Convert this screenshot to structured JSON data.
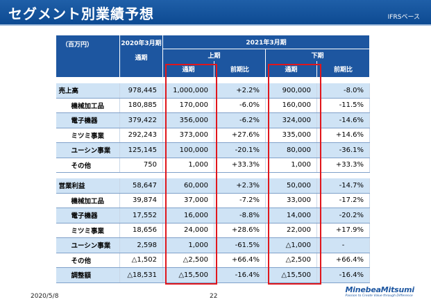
{
  "header": {
    "title": "セグメント別業績予想",
    "subtitle": "IFRSベース"
  },
  "table": {
    "unit": "（百万円）",
    "fy2020_label": "2020年3月期",
    "fy2020_sub": "通期",
    "fy2021_label": "2021年3月期",
    "first_half": "上期",
    "second_half": "下期",
    "fh_full": "通期",
    "fh_yoy": "前期比",
    "sh_full": "通期",
    "sh_yoy": "前期比",
    "rows": [
      {
        "name": "売上高",
        "v2020": "978,445",
        "h1": "1,000,000",
        "h1_yoy": "+2.2%",
        "h2": "900,000",
        "h2_yoy": "-8.0%"
      },
      {
        "name": "機械加工品",
        "v2020": "180,885",
        "h1": "170,000",
        "h1_yoy": "-6.0%",
        "h2": "160,000",
        "h2_yoy": "-11.5%"
      },
      {
        "name": "電子機器",
        "v2020": "379,422",
        "h1": "356,000",
        "h1_yoy": "-6.2%",
        "h2": "324,000",
        "h2_yoy": "-14.6%"
      },
      {
        "name": "ミツミ事業",
        "v2020": "292,243",
        "h1": "373,000",
        "h1_yoy": "+27.6%",
        "h2": "335,000",
        "h2_yoy": "+14.6%"
      },
      {
        "name": "ユーシン事業",
        "v2020": "125,145",
        "h1": "100,000",
        "h1_yoy": "-20.1%",
        "h2": "80,000",
        "h2_yoy": "-36.1%"
      },
      {
        "name": "その他",
        "v2020": "750",
        "h1": "1,000",
        "h1_yoy": "+33.3%",
        "h2": "1,000",
        "h2_yoy": "+33.3%"
      },
      {
        "name": "営業利益",
        "v2020": "58,647",
        "h1": "60,000",
        "h1_yoy": "+2.3%",
        "h2": "50,000",
        "h2_yoy": "-14.7%"
      },
      {
        "name": "機械加工品",
        "v2020": "39,874",
        "h1": "37,000",
        "h1_yoy": "-7.2%",
        "h2": "33,000",
        "h2_yoy": "-17.2%"
      },
      {
        "name": "電子機器",
        "v2020": "17,552",
        "h1": "16,000",
        "h1_yoy": "-8.8%",
        "h2": "14,000",
        "h2_yoy": "-20.2%"
      },
      {
        "name": "ミツミ事業",
        "v2020": "18,656",
        "h1": "24,000",
        "h1_yoy": "+28.6%",
        "h2": "22,000",
        "h2_yoy": "+17.9%"
      },
      {
        "name": "ユーシン事業",
        "v2020": "2,598",
        "h1": "1,000",
        "h1_yoy": "-61.5%",
        "h2": "△1,000",
        "h2_yoy": "-"
      },
      {
        "name": "その他",
        "v2020": "△1,502",
        "h1": "△2,500",
        "h1_yoy": "+66.4%",
        "h2": "△2,500",
        "h2_yoy": "+66.4%"
      },
      {
        "name": "調整額",
        "v2020": "△18,531",
        "h1": "△15,500",
        "h1_yoy": "-16.4%",
        "h2": "△15,500",
        "h2_yoy": "-16.4%"
      }
    ]
  },
  "footer": {
    "date": "2020/5/8",
    "page": "22",
    "logo": "MinebeaMitsumi",
    "tagline": "Passion to Create Value through Difference"
  },
  "colors": {
    "header_blue": "#1d56a0",
    "row_blue": "#cfe3f5",
    "highlight_red": "#e0161c"
  }
}
